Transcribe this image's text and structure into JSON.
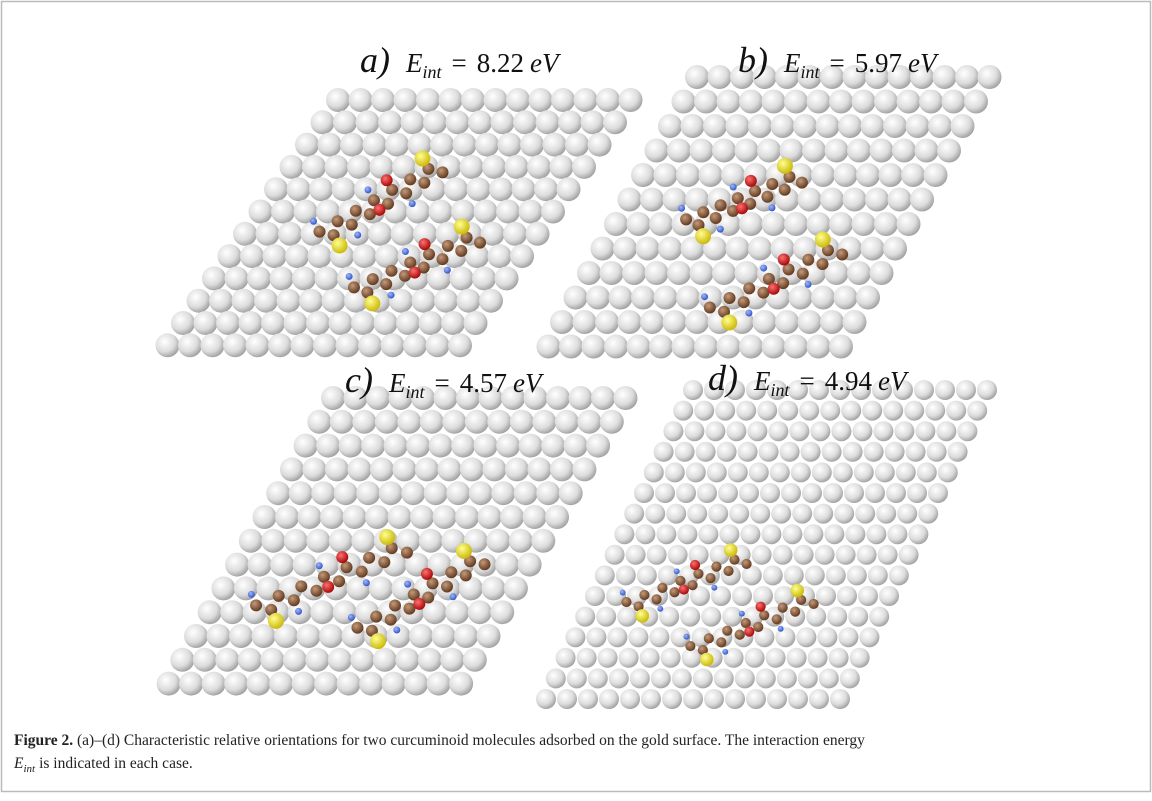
{
  "panels": [
    {
      "label": "a)",
      "energy": "8.22"
    },
    {
      "label": "b)",
      "energy": "5.97"
    },
    {
      "label": "c)",
      "energy": "4.57"
    },
    {
      "label": "d)",
      "energy": "4.94"
    }
  ],
  "symbol": "E",
  "subscript": "int",
  "equals": "=",
  "unit": "eV",
  "caption": {
    "label": "Figure 2.",
    "text": "(a)–(d) Characteristic relative orientations for two curcuminoid molecules adsorbed on the gold surface. The interaction energy",
    "symbol": "E",
    "subscript": "int",
    "end": "is indicated in each case."
  }
}
